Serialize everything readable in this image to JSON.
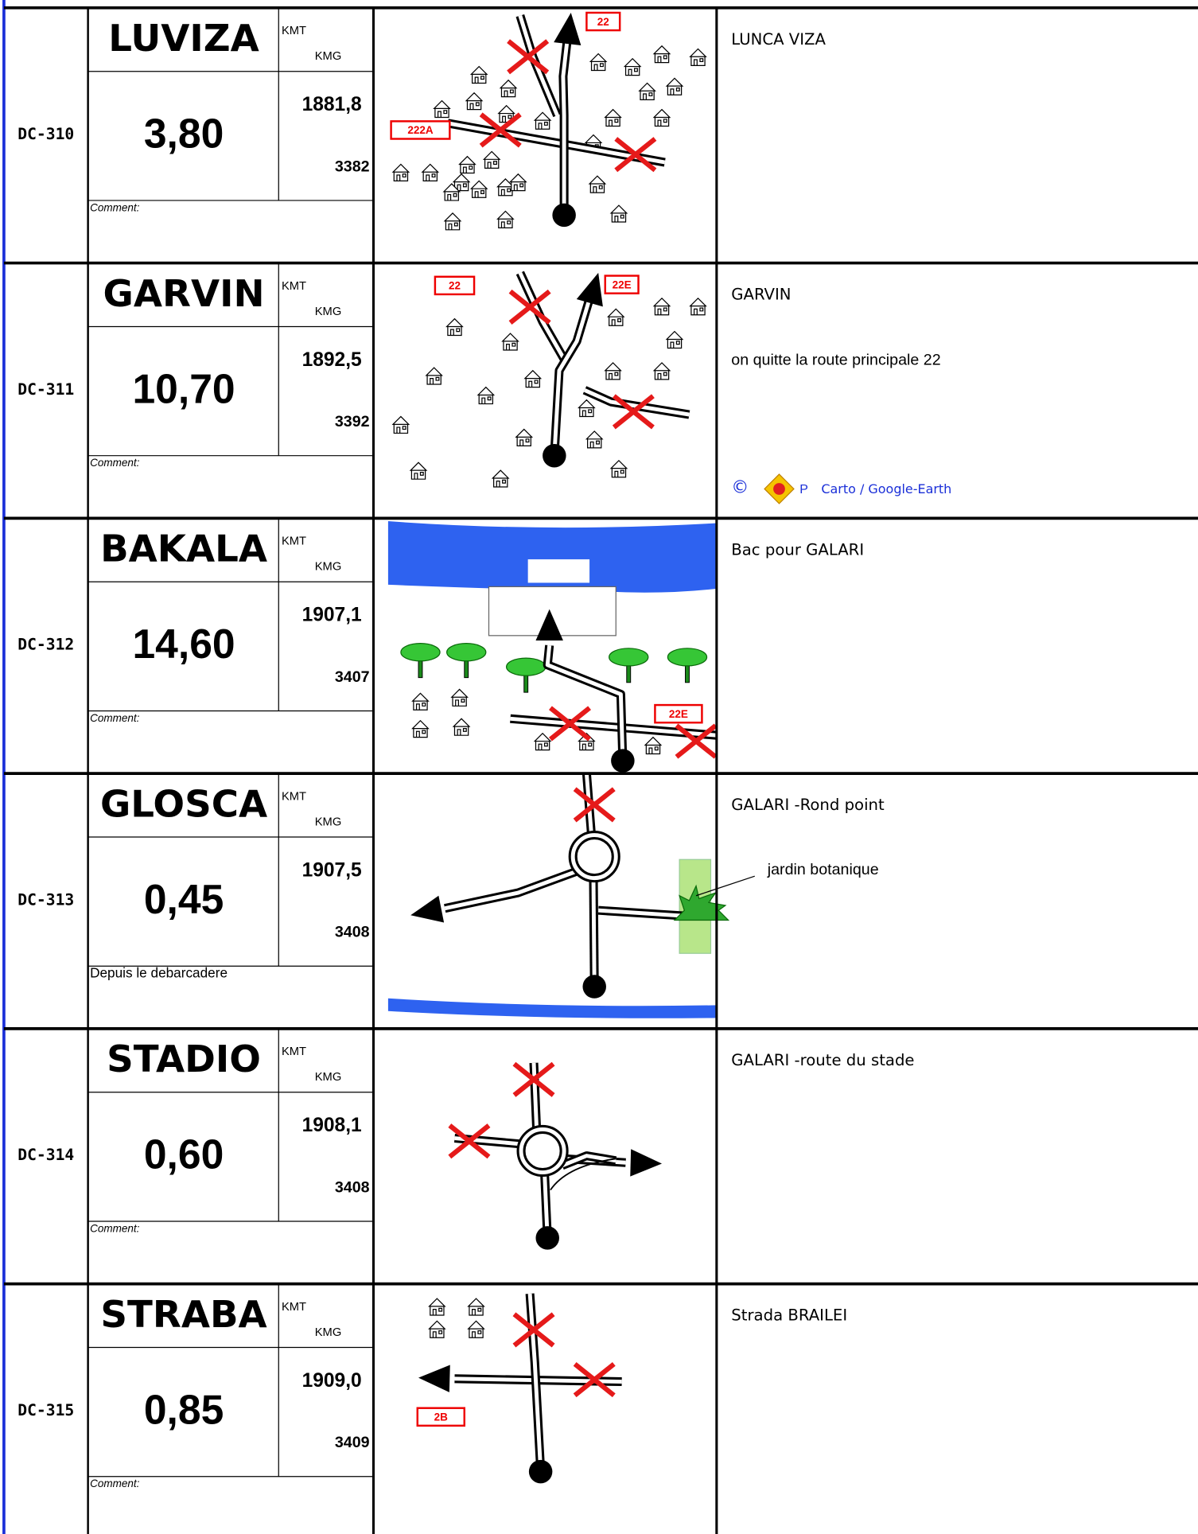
{
  "labels": {
    "kmt": "KMT",
    "kmg": "KMG"
  },
  "rows": [
    {
      "id": "DC-310",
      "name": "LUVIZA",
      "distance": "3,80",
      "kmt": "1881,8",
      "kmg": "3382",
      "comment": "Comment:",
      "description": [
        "LUNCA VIZA"
      ],
      "map_labels": [
        "22",
        "222A"
      ]
    },
    {
      "id": "DC-311",
      "name": "GARVIN",
      "distance": "10,70",
      "kmt": "1892,5",
      "kmg": "3392",
      "comment": "Comment:",
      "description": [
        "GARVIN",
        "on quitte la route principale 22"
      ],
      "map_labels": [
        "22",
        "22E"
      ],
      "credit": {
        "symbol": "©",
        "logo_text": "P",
        "text": "Carto / Google-Earth"
      }
    },
    {
      "id": "DC-312",
      "name": "BAKALA",
      "distance": "14,60",
      "kmt": "1907,1",
      "kmg": "3407",
      "comment": "Comment:",
      "description": [
        "Bac pour GALARI"
      ],
      "map_labels": [
        "22E"
      ]
    },
    {
      "id": "DC-313",
      "name": "GLOSCA",
      "distance": "0,45",
      "kmt": "1907,5",
      "kmg": "3408",
      "comment": "Depuis le debarcadere",
      "description": [
        "GALARI -Rond point"
      ],
      "map_labels": [],
      "map_note": "jardin botanique"
    },
    {
      "id": "DC-314",
      "name": "STADIO",
      "distance": "0,60",
      "kmt": "1908,1",
      "kmg": "3408",
      "comment": "Comment:",
      "description": [
        "GALARI -route du stade"
      ],
      "map_labels": []
    },
    {
      "id": "DC-315",
      "name": "STRABA",
      "distance": "0,85",
      "kmt": "1909,0",
      "kmg": "3409",
      "comment": "Comment:",
      "description": [
        "Strada BRAILEI"
      ],
      "map_labels": [
        "2B"
      ]
    }
  ]
}
